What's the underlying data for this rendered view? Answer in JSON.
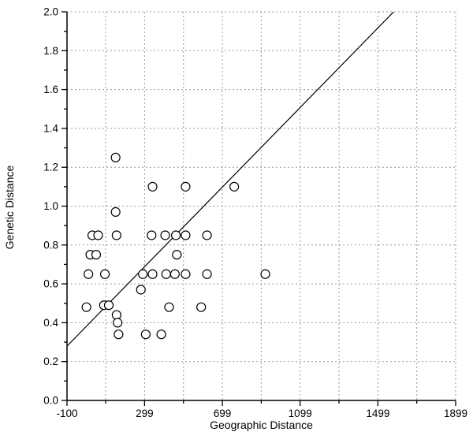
{
  "chart_data": {
    "type": "scatter",
    "title": "",
    "xlabel": "Geographic Distance",
    "ylabel": "Genetic Distance",
    "xlim": [
      -100,
      1899
    ],
    "ylim": [
      0.0,
      2.0
    ],
    "x_ticks": {
      "values": [
        -100,
        299,
        699,
        1099,
        1499,
        1899
      ],
      "labels": [
        "-100",
        "299",
        "699",
        "1099",
        "1499",
        "1899"
      ]
    },
    "y_ticks": {
      "values": [
        0.0,
        0.2,
        0.4,
        0.6,
        0.8,
        1.0,
        1.2,
        1.4,
        1.6,
        1.8,
        2.0
      ],
      "labels": [
        "0.0",
        "0.2",
        "0.4",
        "0.6",
        "0.8",
        "1.0",
        "1.2",
        "1.4",
        "1.6",
        "1.8",
        "2.0"
      ]
    },
    "minor_ticks": {
      "x": [
        99,
        499,
        899,
        1299,
        1699
      ],
      "y": [
        0.1,
        0.3,
        0.5,
        0.7,
        0.9,
        1.1,
        1.3,
        1.5,
        1.7,
        1.9
      ]
    },
    "grid": {
      "style": "dashed",
      "x_values": [
        99,
        299,
        499,
        699,
        899,
        1099,
        1299,
        1499,
        1699,
        1899
      ],
      "y_values": [
        0.2,
        0.4,
        0.6,
        0.8,
        1.0,
        1.2,
        1.4,
        1.6,
        1.8,
        2.0
      ],
      "color": "#999999"
    },
    "legend": "none",
    "marker": "open-circle",
    "marker_color": "#000000",
    "regression_line": {
      "slope": 0.001024,
      "intercept": 0.382,
      "color": "#000000"
    },
    "points": [
      [
        150,
        1.25
      ],
      [
        340,
        1.1
      ],
      [
        510,
        1.1
      ],
      [
        760,
        1.1
      ],
      [
        150,
        0.97
      ],
      [
        30,
        0.85
      ],
      [
        60,
        0.85
      ],
      [
        155,
        0.85
      ],
      [
        335,
        0.85
      ],
      [
        405,
        0.85
      ],
      [
        460,
        0.85
      ],
      [
        510,
        0.85
      ],
      [
        620,
        0.85
      ],
      [
        20,
        0.75
      ],
      [
        50,
        0.75
      ],
      [
        465,
        0.75
      ],
      [
        10,
        0.65
      ],
      [
        95,
        0.65
      ],
      [
        290,
        0.65
      ],
      [
        340,
        0.65
      ],
      [
        410,
        0.65
      ],
      [
        455,
        0.65
      ],
      [
        510,
        0.65
      ],
      [
        620,
        0.65
      ],
      [
        920,
        0.65
      ],
      [
        280,
        0.57
      ],
      [
        0,
        0.48
      ],
      [
        90,
        0.49
      ],
      [
        115,
        0.49
      ],
      [
        425,
        0.48
      ],
      [
        590,
        0.48
      ],
      [
        155,
        0.44
      ],
      [
        160,
        0.4
      ],
      [
        165,
        0.34
      ],
      [
        305,
        0.34
      ],
      [
        385,
        0.34
      ]
    ]
  }
}
